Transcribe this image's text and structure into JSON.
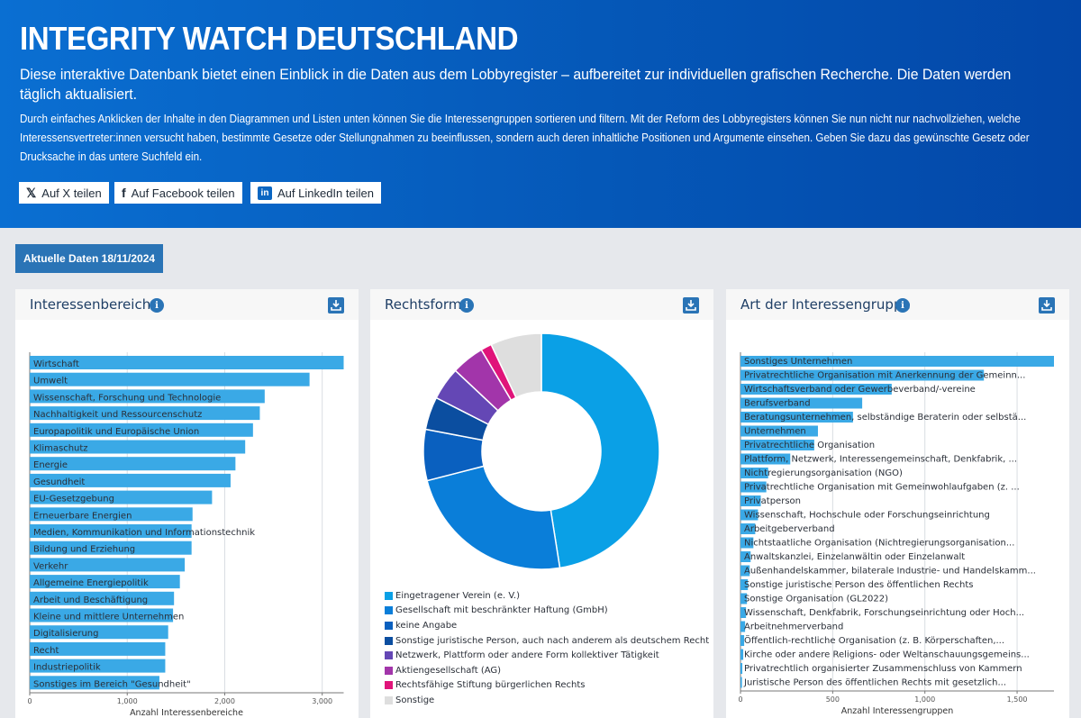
{
  "header": {
    "title": "INTEGRITY WATCH DEUTSCHLAND",
    "intro": "Diese interaktive Datenbank bietet einen Einblick in die Daten aus dem Lobbyregister – aufbereitet zur individuellen grafischen Recherche. Die Daten werden täglich aktualisiert.",
    "description": "Durch einfaches Anklicken der Inhalte in den Diagrammen und Listen unten können Sie die Interessengruppen sortieren und filtern. Mit der Reform des Lobbyregisters können Sie nun nicht nur nachvollziehen, welche Interessensvertreter:innen versucht haben, bestimmte Gesetze oder Stellungnahmen zu beeinflussen, sondern auch deren inhaltliche Positionen und Argumente einsehen. Geben Sie dazu das gewünschte Gesetz oder Drucksache in das untere Suchfeld ein.",
    "share_x": "Auf X teilen",
    "share_facebook": "Auf Facebook teilen",
    "share_linkedin": "Auf LinkedIn teilen",
    "icons": {
      "x": "x-logo-icon",
      "facebook": "facebook-logo-icon",
      "linkedin": "linkedin-logo-icon"
    }
  },
  "date_button": "Aktuelle Daten 18/11/2024",
  "panels": {
    "interessen": {
      "title": "Interessenbereiche",
      "info": "i"
    },
    "rechtsform": {
      "title": "Rechtsform",
      "info": "i"
    },
    "art": {
      "title": "Art der Interessengruppe",
      "info": "i"
    }
  },
  "colors": {
    "bar": "#3aa9e6",
    "accent": "#2a74b6",
    "header": "#0558b8"
  },
  "chart_data": [
    {
      "type": "bar",
      "orientation": "horizontal",
      "categories": [
        "Wirtschaft",
        "Umwelt",
        "Wissenschaft, Forschung und Technologie",
        "Nachhaltigkeit und Ressourcenschutz",
        "Europapolitik und Europäische Union",
        "Klimaschutz",
        "Energie",
        "Gesundheit",
        "EU-Gesetzgebung",
        "Erneuerbare Energien",
        "Medien, Kommunikation und Informationstechnik",
        "Bildung und Erziehung",
        "Verkehr",
        "Allgemeine Energiepolitik",
        "Arbeit und Beschäftigung",
        "Kleine und mittlere Unternehmen",
        "Digitalisierung",
        "Recht",
        "Industriepolitik",
        "Sonstiges im Bereich \"Gesundheit\""
      ],
      "values": [
        3220,
        2870,
        2410,
        2360,
        2290,
        2210,
        2110,
        2060,
        1870,
        1670,
        1660,
        1660,
        1590,
        1540,
        1480,
        1470,
        1420,
        1390,
        1390,
        1330
      ],
      "xlabel": "Anzahl Interessenbereiche",
      "xticks": [
        "0",
        "1,000",
        "2,000",
        "3,000"
      ],
      "xlim": [
        0,
        3220
      ],
      "grid": true
    },
    {
      "type": "pie",
      "donut": true,
      "categories": [
        "Eingetragener Verein (e. V.)",
        "Gesellschaft mit beschränkter Haftung (GmbH)",
        "keine Angabe",
        "Sonstige juristische Person, auch nach anderem als deutschem Recht",
        "Netzwerk, Plattform oder andere Form kollektiver Tätigkeit",
        "Aktiengesellschaft (AG)",
        "Rechtsfähige Stiftung bürgerlichen Rechts",
        "Sonstige"
      ],
      "values": [
        47.5,
        23.5,
        7,
        4.5,
        4.5,
        4.5,
        1.5,
        7
      ],
      "colors": [
        "#0aa0e6",
        "#0a7ed9",
        "#0a60bf",
        "#0b4ea0",
        "#6447b5",
        "#a235aa",
        "#e0147a",
        "#dedede"
      ],
      "legend_position": "bottom"
    },
    {
      "type": "bar",
      "orientation": "horizontal",
      "categories": [
        "Sonstiges Unternehmen",
        "Privatrechtliche Organisation mit Anerkennung der Gemeinn...",
        "Wirtschaftsverband oder Gewerbeverband/-vereine",
        "Berufsverband",
        "Beratungsunternehmen, selbständige Beraterin oder selbstä...",
        "Unternehmen",
        "Privatrechtliche Organisation",
        "Plattform, Netzwerk, Interessengemeinschaft, Denkfabrik, ...",
        "Nichtregierungsorganisation (NGO)",
        "Privatrechtliche Organisation mit Gemeinwohlaufgaben (z. ...",
        "Privatperson",
        "Wissenschaft, Hochschule oder Forschungseinrichtung",
        "Arbeitgeberverband",
        "Nichtstaatliche Organisation (Nichtregierungsorganisation...",
        "Anwaltskanzlei, Einzelanwältin oder Einzelanwalt",
        "Außenhandelskammer, bilaterale Industrie- und Handelskamm...",
        "Sonstige juristische Person des öffentlichen Rechts",
        "Sonstige Organisation (GL2022)",
        "Wissenschaft, Denkfabrik, Forschungseinrichtung oder Hoch...",
        "Arbeitnehmerverband",
        "Öffentlich-rechtliche Organisation (z. B. Körperschaften,...",
        "Kirche oder andere Religions- oder Weltanschauungsgemeins...",
        "Privatrechtlich organisierter Zusammenschluss von Kammern",
        "Juristische Person des öffentlichen Rechts mit gesetzlich..."
      ],
      "values": [
        1700,
        1320,
        820,
        660,
        610,
        420,
        400,
        270,
        150,
        140,
        110,
        95,
        80,
        70,
        55,
        50,
        40,
        35,
        30,
        25,
        20,
        15,
        10,
        8
      ],
      "xlabel": "Anzahl Interessengruppen",
      "xticks": [
        "0",
        "500",
        "1,000",
        "1,500"
      ],
      "xlim": [
        0,
        1700
      ],
      "grid": true
    }
  ]
}
